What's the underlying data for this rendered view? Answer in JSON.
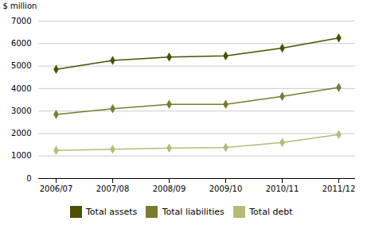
{
  "chart_data": {
    "type": "line",
    "ylabel": "$ million",
    "categories": [
      "2006/07",
      "2007/08",
      "2008/09",
      "2009/10",
      "2010/11",
      "2011/12"
    ],
    "series": [
      {
        "name": "Total assets",
        "color": "#4d5000",
        "values": [
          4850,
          5250,
          5400,
          5450,
          5800,
          6250
        ]
      },
      {
        "name": "Total liabilities",
        "color": "#7a7a30",
        "values": [
          2850,
          3100,
          3300,
          3300,
          3650,
          4050
        ]
      },
      {
        "name": "Total debt",
        "color": "#b8b878",
        "values": [
          1250,
          1300,
          1350,
          1380,
          1600,
          1950
        ]
      }
    ],
    "ylim": [
      0,
      7000
    ],
    "yticks": [
      0,
      1000,
      2000,
      3000,
      4000,
      5000,
      6000,
      7000
    ],
    "grid": true,
    "legend": "bottom",
    "marker": "diamond"
  }
}
